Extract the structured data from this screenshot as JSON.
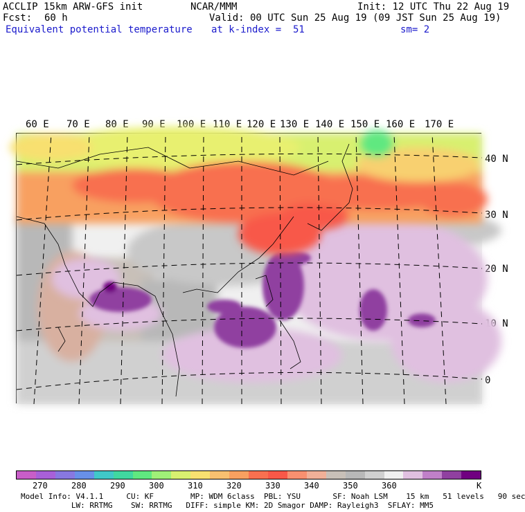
{
  "header": {
    "model": "ACCLIP 15km ARW-GFS init",
    "center": "NCAR/MMM",
    "init": "Init: 12 UTC Thu 22 Aug 19",
    "fcst_label": "Fcst:",
    "fcst_value": "60 h",
    "valid": "Valid: 00 UTC Sun 25 Aug 19 (09 JST Sun 25 Aug 19)",
    "field": "Equivalent potential temperature",
    "level": "at k-index =  51",
    "smoothing": "sm= 2"
  },
  "map": {
    "lon_labels": [
      "60 E",
      "70 E",
      "80 E",
      "90 E",
      "100 E",
      "110 E",
      "120 E",
      "130 E",
      "140 E",
      "150 E",
      "160 E",
      "170 E"
    ],
    "lat_labels": [
      "40 N",
      "30 N",
      "20 N",
      "10 N",
      "0"
    ]
  },
  "colorbar": {
    "colors": [
      "#c85ec8",
      "#a860d8",
      "#8878e0",
      "#6890e8",
      "#40c8c8",
      "#40d8a0",
      "#60e880",
      "#a0f078",
      "#d8f070",
      "#f8e070",
      "#f8c070",
      "#f8a060",
      "#f87050",
      "#f85848",
      "#f89070",
      "#f0b098",
      "#c8c0b8",
      "#b8b8b8",
      "#d0d0d0",
      "#f0f0f0",
      "#e0c0e0",
      "#c080c8",
      "#9040a0",
      "#700080"
    ],
    "ticks": [
      "270",
      "280",
      "290",
      "300",
      "310",
      "320",
      "330",
      "340",
      "350",
      "360"
    ],
    "unit": "K"
  },
  "footer": {
    "line1": "Model Info: V4.1.1     CU: KF        MP: WDM 6class  PBL: YSU       SF: Noah LSM    15 km   51 levels   90 sec",
    "line2": "           LW: RRTMG    SW: RRTMG   DIFF: simple KM: 2D Smagor DAMP: Rayleigh3  SFLAY: MM5"
  }
}
